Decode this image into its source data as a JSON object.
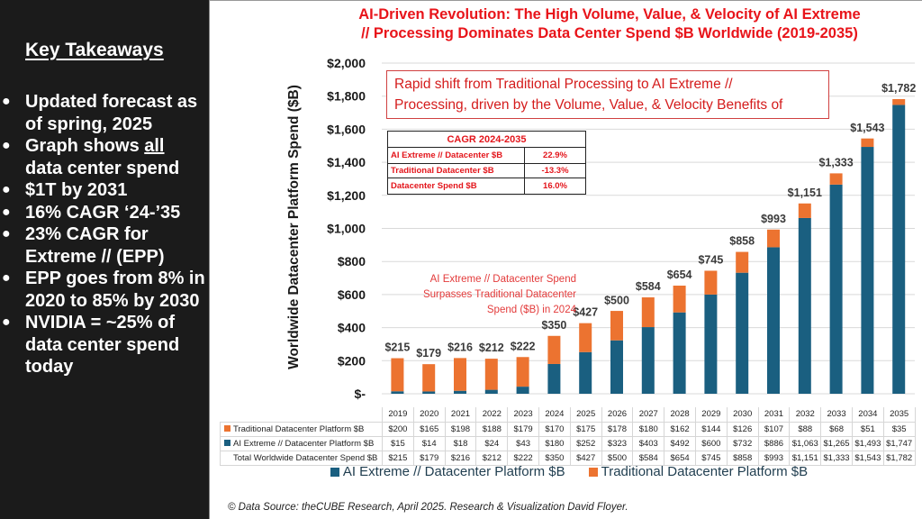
{
  "left_panel": {
    "title": "Key Takeaways",
    "bullets": [
      {
        "lines": [
          "Updated forecast as",
          "of spring, 2025"
        ]
      },
      {
        "pre": "Graph shows ",
        "underlined": "all",
        "lines_after": [
          "data center spend"
        ]
      },
      {
        "lines": [
          "$1T by 2031"
        ]
      },
      {
        "lines": [
          "16% CAGR ‘24-’35"
        ]
      },
      {
        "lines": [
          "23% CAGR for",
          "Extreme // (EPP)"
        ]
      },
      {
        "lines": [
          "EPP goes from 8% in",
          "2020 to 85% by 2030"
        ]
      },
      {
        "lines": [
          "NVIDIA = ~25% of",
          "data center spend",
          "today"
        ]
      }
    ],
    "bullet_glyph": "●"
  },
  "callout": {
    "line1": "Rapid shift from Traditional Processing to AI Extreme //",
    "line2": "Processing, driven by the Volume, Value, & Velocity Benefits of"
  },
  "cagr_table": {
    "title": "CAGR 2024-2035",
    "rows": [
      {
        "label": "AI Extreme // Datacenter $B",
        "value": "22.9%"
      },
      {
        "label": "Traditional Datacenter $B",
        "value": "-13.3%"
      },
      {
        "label": "Datacenter Spend $B",
        "value": "16.0%"
      }
    ]
  },
  "annotation": {
    "line1": "AI Extreme // Datacenter Spend",
    "line2": "Surpasses Traditional Datacenter",
    "line3": "Spend ($B) in 2024"
  },
  "source": "© Data Source: theCUBE Research, April 2025. Research & Visualization David Floyer.",
  "colors": {
    "ai_extreme": "#1a5f80",
    "traditional": "#ec7330",
    "title_red": "#e8141a"
  },
  "chart_data": {
    "type": "bar",
    "stacked": true,
    "title": "AI-Driven Revolution: The High Volume, Value, & Velocity of AI Extreme // Processing Dominates Data Center Spend $B Worldwide (2019-2035)",
    "title_lines": [
      "AI-Driven Revolution: The High Volume, Value, & Velocity of AI Extreme",
      "// Processing Dominates Data Center Spend $B Worldwide (2019-2035)"
    ],
    "xlabel": "",
    "ylabel": "Worldwide Datacenter Platform Spend ($B)",
    "ylim": [
      0,
      2000
    ],
    "yticks": [
      0,
      200,
      400,
      600,
      800,
      1000,
      1200,
      1400,
      1600,
      1800,
      2000
    ],
    "ytick_labels": [
      "$-",
      "$200",
      "$400",
      "$600",
      "$800",
      "$1,000",
      "$1,200",
      "$1,400",
      "$1,600",
      "$1,800",
      "$2,000"
    ],
    "grid": true,
    "legend_position": "bottom",
    "categories": [
      "2019",
      "2020",
      "2021",
      "2022",
      "2023",
      "2024",
      "2025",
      "2026",
      "2027",
      "2028",
      "2029",
      "2030",
      "2031",
      "2032",
      "2033",
      "2034",
      "2035"
    ],
    "series": [
      {
        "name": "AI Extreme // Datacenter Platform $B",
        "color": "#1a5f80",
        "values": [
          15,
          14,
          18,
          24,
          43,
          180,
          252,
          323,
          403,
          492,
          600,
          732,
          886,
          1063,
          1265,
          1493,
          1747
        ],
        "labels": [
          "$15",
          "$14",
          "$18",
          "$24",
          "$43",
          "$180",
          "$252",
          "$323",
          "$403",
          "$492",
          "$600",
          "$732",
          "$886",
          "$1,063",
          "$1,265",
          "$1,493",
          "$1,747"
        ]
      },
      {
        "name": "Traditional Datacenter Platform $B",
        "color": "#ec7330",
        "values": [
          200,
          165,
          198,
          188,
          179,
          170,
          175,
          178,
          180,
          162,
          144,
          126,
          107,
          88,
          68,
          51,
          35
        ],
        "labels": [
          "$200",
          "$165",
          "$198",
          "$188",
          "$179",
          "$170",
          "$175",
          "$178",
          "$180",
          "$162",
          "$144",
          "$126",
          "$107",
          "$88",
          "$68",
          "$51",
          "$35"
        ]
      }
    ],
    "totals": {
      "name": "Total Worldwide Datacenter Spend $B",
      "values": [
        215,
        179,
        216,
        212,
        222,
        350,
        427,
        500,
        584,
        654,
        745,
        858,
        993,
        1151,
        1333,
        1543,
        1782
      ],
      "labels": [
        "$215",
        "$179",
        "$216",
        "$212",
        "$222",
        "$350",
        "$427",
        "$500",
        "$584",
        "$654",
        "$745",
        "$858",
        "$993",
        "$1,151",
        "$1,333",
        "$1,543",
        "$1,782"
      ]
    },
    "legend": [
      {
        "label": "AI Extreme // Datacenter Platform $B",
        "color": "#1a5f80"
      },
      {
        "label": "Traditional Datacenter Platform $B",
        "color": "#ec7330"
      }
    ]
  }
}
